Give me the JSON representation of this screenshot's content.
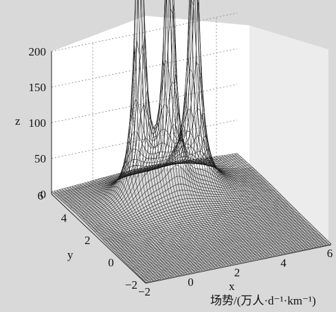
{
  "chart_data": {
    "type": "surface",
    "title": "",
    "caption": "场势/(万人·d⁻¹·km⁻¹)",
    "xlabel": "x",
    "ylabel": "y",
    "zlabel": "z",
    "xlim": [
      -2,
      7
    ],
    "ylim": [
      -2,
      7
    ],
    "zlim": [
      0,
      200
    ],
    "x_ticks": [
      "−2",
      "0",
      "2",
      "4",
      "6"
    ],
    "y_ticks": [
      "−2",
      "0",
      "2",
      "4",
      "6"
    ],
    "z_ticks": [
      "0",
      "50",
      "100",
      "150",
      "200"
    ],
    "grid": true,
    "peaks": [
      {
        "x": 1.0,
        "y": 4.5,
        "z": "clipped above 200"
      },
      {
        "x": 2.3,
        "y": 4.2,
        "z": "clipped above 200"
      },
      {
        "x": 3.8,
        "y": 4.8,
        "z": "clipped above 200"
      }
    ],
    "colors": {
      "background": "#d9d9d9",
      "pane": "#ffffff",
      "mesh": "#1a1a1a"
    }
  }
}
